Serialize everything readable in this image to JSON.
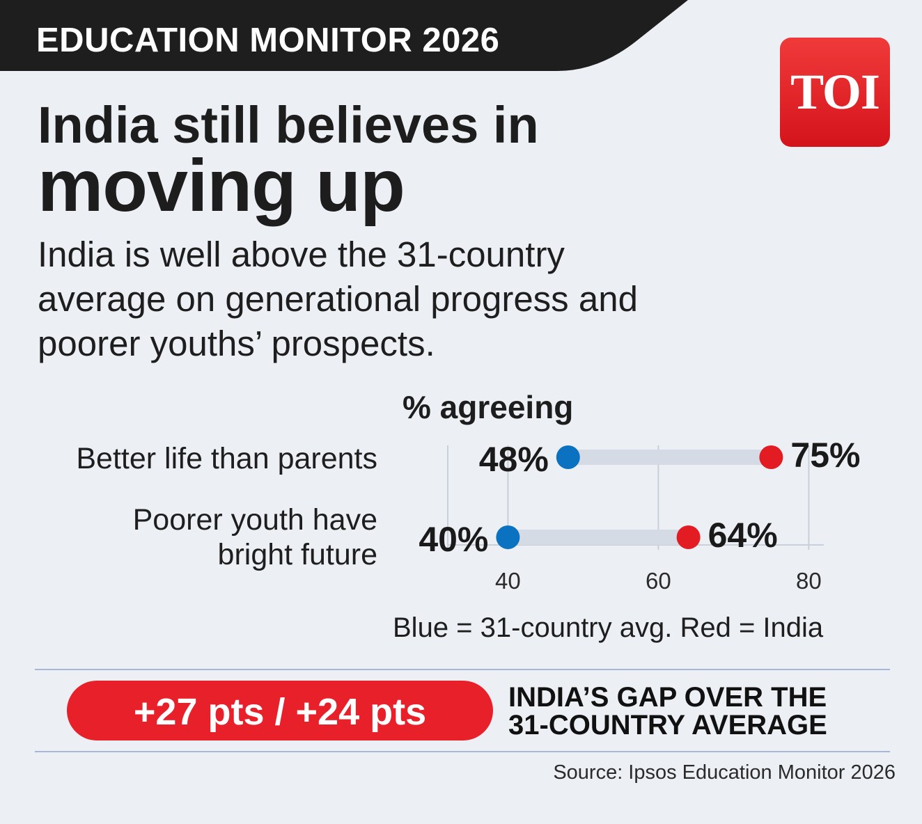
{
  "banner": {
    "text": "EDUCATION MONITOR 2026"
  },
  "logo": {
    "text": "TOI",
    "color": "#e31b23"
  },
  "headline": {
    "line1": "India still believes in",
    "line2": "moving up"
  },
  "subhead": "India is well above the 31-country average on generational progress and poorer youths’ prospects.",
  "chart_data": {
    "type": "dumbbell",
    "title": "% agreeing",
    "categories": [
      "Better life than parents",
      "Poorer youth have bright future"
    ],
    "category_lines": [
      [
        "Better life than parents"
      ],
      [
        "Poorer youth have",
        "bright future"
      ]
    ],
    "series": [
      {
        "color": "#0a72c0",
        "values": [
          48,
          40
        ],
        "labels": [
          "48%",
          "40%"
        ]
      },
      {
        "color": "#e31b23",
        "values": [
          75,
          64
        ],
        "labels": [
          "75%",
          "64%"
        ]
      }
    ],
    "xlim": [
      32,
      82
    ],
    "xticks": [
      40,
      60,
      80
    ],
    "xtick_labels": [
      "40",
      "60",
      "80"
    ],
    "grid": true,
    "legend_text": "Blue = 31-country avg. Red = India"
  },
  "gap": {
    "value": "+27 pts / +24 pts",
    "label": "INDIA’S GAP OVER THE 31-COUNTRY AVERAGE",
    "label_lines": [
      "INDIA’S GAP OVER THE",
      "31-COUNTRY AVERAGE"
    ]
  },
  "source": "Source: Ipsos Education Monitor 2026",
  "colors": {
    "background": "#eceff4",
    "banner": "#1e1e1e",
    "accent_red": "#e31b23",
    "accent_blue": "#0a72c0",
    "track": "#d5dbe4"
  }
}
